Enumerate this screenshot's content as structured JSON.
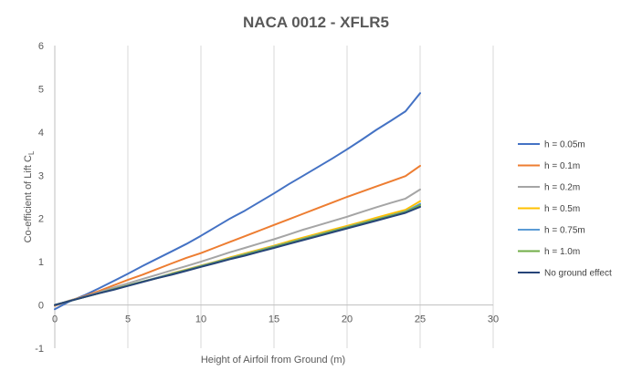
{
  "chart_data": {
    "type": "line",
    "title": "NACA 0012 - XFLR5",
    "xlabel": "Height of Airfoil from Ground (m)",
    "ylabel_main": "Co-efficient of Lift C",
    "ylabel_sub": "L",
    "xlim": [
      0,
      30
    ],
    "ylim": [
      -1,
      6
    ],
    "xticks": [
      0,
      5,
      10,
      15,
      20,
      25,
      30
    ],
    "yticks": [
      -1,
      0,
      1,
      2,
      3,
      4,
      5,
      6
    ],
    "grid": "vertical",
    "legend_position": "right",
    "x": [
      0,
      1,
      2,
      3,
      4,
      5,
      6,
      7,
      8,
      9,
      10,
      11,
      12,
      13,
      14,
      15,
      16,
      17,
      18,
      19,
      20,
      21,
      22,
      23,
      24,
      25
    ],
    "series": [
      {
        "name": "h = 0.05m",
        "color": "#4472C4",
        "values": [
          -0.1,
          0.08,
          0.22,
          0.38,
          0.55,
          0.72,
          0.9,
          1.07,
          1.24,
          1.41,
          1.6,
          1.8,
          2.0,
          2.18,
          2.38,
          2.58,
          2.79,
          2.99,
          3.19,
          3.39,
          3.6,
          3.82,
          4.05,
          4.26,
          4.48,
          4.9
        ]
      },
      {
        "name": "h = 0.1m",
        "color": "#ED7D31",
        "values": [
          -0.02,
          0.1,
          0.2,
          0.32,
          0.45,
          0.58,
          0.7,
          0.83,
          0.96,
          1.09,
          1.2,
          1.33,
          1.46,
          1.59,
          1.72,
          1.85,
          1.98,
          2.11,
          2.24,
          2.37,
          2.5,
          2.62,
          2.74,
          2.86,
          2.98,
          3.22
        ]
      },
      {
        "name": "h = 0.2m",
        "color": "#A5A5A5",
        "values": [
          -0.01,
          0.1,
          0.19,
          0.29,
          0.4,
          0.5,
          0.6,
          0.7,
          0.8,
          0.9,
          1.0,
          1.11,
          1.22,
          1.32,
          1.42,
          1.52,
          1.63,
          1.74,
          1.84,
          1.94,
          2.04,
          2.15,
          2.26,
          2.36,
          2.46,
          2.67
        ]
      },
      {
        "name": "h = 0.5m",
        "color": "#FFC000",
        "values": [
          0.0,
          0.09,
          0.18,
          0.27,
          0.36,
          0.45,
          0.54,
          0.63,
          0.73,
          0.82,
          0.91,
          1.0,
          1.1,
          1.19,
          1.28,
          1.37,
          1.47,
          1.56,
          1.65,
          1.74,
          1.83,
          1.92,
          2.02,
          2.11,
          2.2,
          2.4
        ]
      },
      {
        "name": "h = 0.75m",
        "color": "#5B9BD5",
        "values": [
          0.0,
          0.09,
          0.18,
          0.27,
          0.36,
          0.45,
          0.54,
          0.63,
          0.72,
          0.81,
          0.9,
          0.99,
          1.08,
          1.17,
          1.26,
          1.35,
          1.44,
          1.53,
          1.62,
          1.71,
          1.8,
          1.89,
          1.98,
          2.07,
          2.16,
          2.34
        ]
      },
      {
        "name": "h = 1.0m",
        "color": "#70AD47",
        "values": [
          0.0,
          0.09,
          0.18,
          0.27,
          0.36,
          0.45,
          0.54,
          0.62,
          0.71,
          0.8,
          0.89,
          0.98,
          1.07,
          1.16,
          1.25,
          1.34,
          1.43,
          1.52,
          1.61,
          1.7,
          1.79,
          1.88,
          1.97,
          2.06,
          2.15,
          2.31
        ]
      },
      {
        "name": "No ground effect",
        "color": "#264478",
        "values": [
          0.0,
          0.09,
          0.18,
          0.27,
          0.35,
          0.44,
          0.53,
          0.62,
          0.7,
          0.79,
          0.88,
          0.97,
          1.06,
          1.14,
          1.23,
          1.32,
          1.41,
          1.5,
          1.59,
          1.68,
          1.77,
          1.86,
          1.95,
          2.04,
          2.13,
          2.27
        ]
      }
    ]
  }
}
